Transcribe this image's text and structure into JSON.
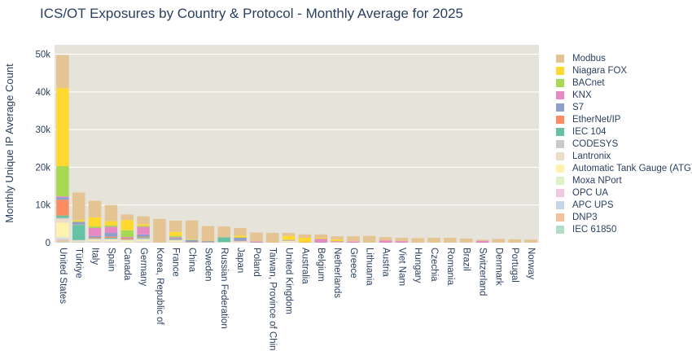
{
  "chart_data": {
    "type": "bar",
    "stacked": true,
    "title": "ICS/OT Exposures by Country & Protocol - Monthly Average for 2025",
    "xlabel": "",
    "ylabel": "Monthly Unique IP Average Count",
    "ylim": [
      0,
      52500
    ],
    "yticks": [
      0,
      10000,
      20000,
      30000,
      40000,
      50000
    ],
    "ytick_labels": [
      "0",
      "10k",
      "20k",
      "30k",
      "40k",
      "50k"
    ],
    "grid": true,
    "legend_position": "right",
    "categories": [
      "United States",
      "Türkiye",
      "Italy",
      "Spain",
      "Canada",
      "Germany",
      "Korea, Republic of",
      "France",
      "China",
      "Sweden",
      "Russian Federation",
      "Japan",
      "Poland",
      "Taiwan, Province of China",
      "United Kingdom",
      "Australia",
      "Belgium",
      "Netherlands",
      "Greece",
      "Lithuania",
      "Austria",
      "Viet Nam",
      "Hungary",
      "Czechia",
      "Romania",
      "Brazil",
      "Switzerland",
      "Denmark",
      "Portugal",
      "Norway"
    ],
    "series": [
      {
        "name": "IEC 61850",
        "color": "#b3dfca",
        "values": [
          200,
          100,
          0,
          0,
          0,
          0,
          0,
          0,
          0,
          0,
          100,
          0,
          0,
          0,
          0,
          0,
          0,
          0,
          0,
          0,
          0,
          0,
          0,
          0,
          0,
          0,
          0,
          0,
          0,
          0
        ]
      },
      {
        "name": "DNP3",
        "color": "#f2c29f",
        "values": [
          500,
          100,
          0,
          0,
          0,
          0,
          0,
          0,
          0,
          0,
          0,
          0,
          0,
          0,
          0,
          0,
          0,
          0,
          0,
          0,
          0,
          0,
          0,
          0,
          0,
          0,
          0,
          0,
          0,
          0
        ]
      },
      {
        "name": "APC UPS",
        "color": "#c7d4ea",
        "values": [
          300,
          50,
          100,
          100,
          50,
          100,
          0,
          50,
          0,
          0,
          0,
          0,
          0,
          0,
          0,
          0,
          0,
          0,
          0,
          0,
          0,
          0,
          0,
          0,
          0,
          0,
          0,
          0,
          0,
          0
        ]
      },
      {
        "name": "OPC UA",
        "color": "#f0c8df",
        "values": [
          200,
          50,
          200,
          200,
          50,
          200,
          0,
          100,
          0,
          0,
          0,
          100,
          0,
          0,
          100,
          0,
          0,
          0,
          0,
          0,
          0,
          0,
          0,
          0,
          0,
          0,
          0,
          0,
          0,
          0
        ]
      },
      {
        "name": "Moxa NPort",
        "color": "#ddf2c4",
        "values": [
          400,
          100,
          200,
          200,
          100,
          200,
          0,
          100,
          0,
          0,
          0,
          100,
          0,
          0,
          100,
          0,
          0,
          0,
          0,
          0,
          0,
          0,
          0,
          0,
          0,
          0,
          0,
          0,
          0,
          0
        ]
      },
      {
        "name": "Automatic Tank Gauge (ATG)",
        "color": "#fff2ae",
        "values": [
          3700,
          100,
          300,
          300,
          400,
          300,
          0,
          300,
          0,
          0,
          0,
          100,
          0,
          0,
          200,
          0,
          0,
          100,
          0,
          0,
          0,
          0,
          0,
          0,
          0,
          0,
          0,
          0,
          0,
          0
        ]
      },
      {
        "name": "Lantronix",
        "color": "#ecddc9",
        "values": [
          1000,
          100,
          100,
          100,
          100,
          100,
          0,
          100,
          0,
          0,
          100,
          0,
          0,
          0,
          100,
          0,
          0,
          0,
          0,
          0,
          0,
          0,
          0,
          0,
          0,
          0,
          0,
          0,
          0,
          0
        ]
      },
      {
        "name": "CODESYS",
        "color": "#c9c9c9",
        "values": [
          300,
          100,
          200,
          200,
          100,
          300,
          0,
          100,
          100,
          100,
          0,
          100,
          0,
          0,
          0,
          0,
          0,
          0,
          0,
          0,
          0,
          0,
          0,
          0,
          0,
          0,
          0,
          0,
          0,
          0
        ]
      },
      {
        "name": "IEC 104",
        "color": "#66c2a5",
        "values": [
          600,
          4000,
          100,
          200,
          100,
          200,
          0,
          100,
          0,
          0,
          1200,
          0,
          0,
          0,
          0,
          0,
          0,
          0,
          0,
          0,
          0,
          0,
          0,
          0,
          0,
          0,
          0,
          0,
          0,
          0
        ]
      },
      {
        "name": "EtherNet/IP",
        "color": "#fc8d62",
        "values": [
          4200,
          100,
          200,
          300,
          300,
          200,
          0,
          100,
          100,
          100,
          0,
          100,
          0,
          0,
          100,
          100,
          0,
          100,
          0,
          0,
          0,
          0,
          0,
          0,
          0,
          0,
          0,
          0,
          0,
          0
        ]
      },
      {
        "name": "S7",
        "color": "#8da0cb",
        "values": [
          600,
          600,
          400,
          1000,
          100,
          600,
          0,
          300,
          500,
          200,
          0,
          800,
          100,
          0,
          100,
          0,
          100,
          0,
          0,
          0,
          0,
          0,
          0,
          0,
          0,
          0,
          0,
          0,
          0,
          0
        ]
      },
      {
        "name": "KNX",
        "color": "#e78ac3",
        "values": [
          300,
          100,
          2100,
          1600,
          200,
          2000,
          0,
          200,
          0,
          0,
          0,
          0,
          200,
          0,
          0,
          0,
          900,
          200,
          300,
          0,
          600,
          400,
          0,
          0,
          0,
          0,
          500,
          0,
          0,
          0
        ]
      },
      {
        "name": "BACnet",
        "color": "#a6d854",
        "values": [
          8000,
          200,
          400,
          400,
          1800,
          300,
          0,
          300,
          100,
          100,
          0,
          100,
          0,
          0,
          100,
          0,
          100,
          100,
          0,
          0,
          0,
          0,
          0,
          0,
          0,
          0,
          0,
          0,
          0,
          0
        ]
      },
      {
        "name": "Niagara FOX",
        "color": "#ffd92f",
        "values": [
          20700,
          300,
          2400,
          1100,
          2700,
          400,
          0,
          1100,
          100,
          0,
          0,
          500,
          0,
          0,
          1000,
          1200,
          200,
          400,
          0,
          0,
          0,
          0,
          0,
          0,
          0,
          0,
          0,
          0,
          0,
          0
        ]
      },
      {
        "name": "Modbus",
        "color": "#e5c494",
        "values": [
          8800,
          7300,
          4400,
          4300,
          1500,
          2100,
          6300,
          3000,
          5000,
          3900,
          2900,
          2000,
          2400,
          2600,
          800,
          900,
          900,
          800,
          1400,
          1800,
          900,
          900,
          1200,
          1300,
          1300,
          1100,
          300,
          1000,
          900,
          800
        ]
      }
    ]
  }
}
